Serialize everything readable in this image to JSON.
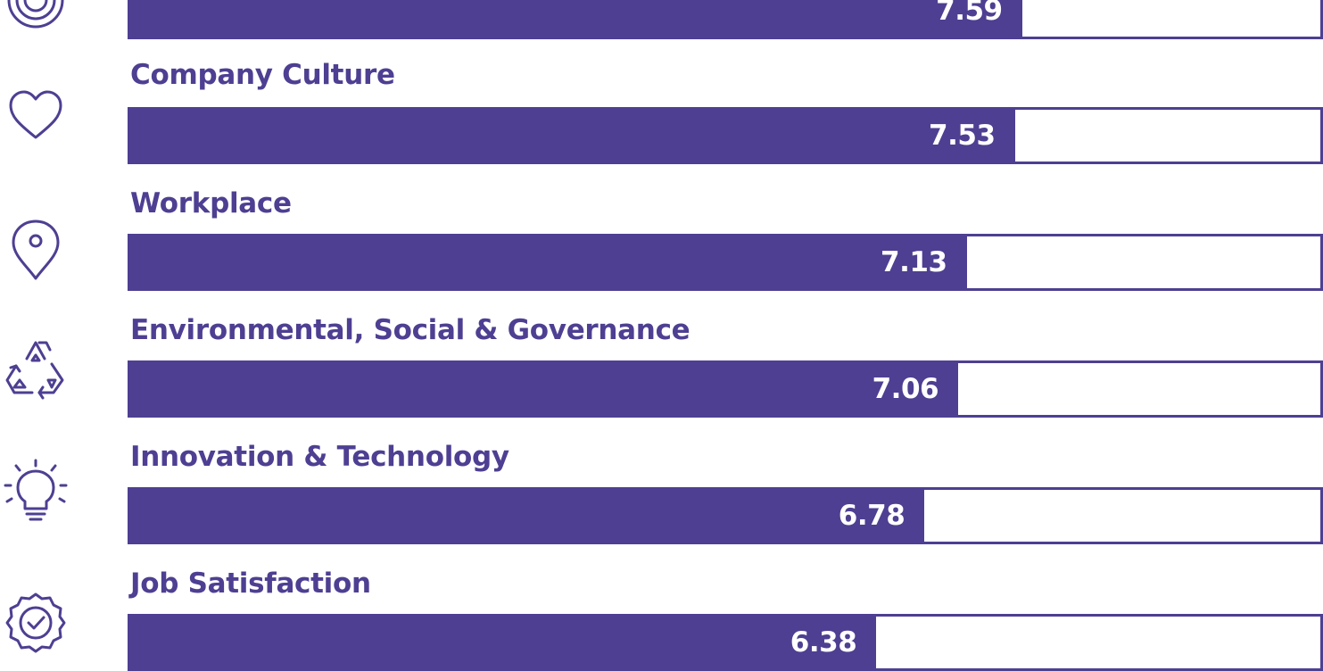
{
  "colors": {
    "bar": "#4e3f92",
    "text_on_bar": "#ffffff",
    "background": "#ffffff"
  },
  "chart_data": {
    "type": "bar",
    "orientation": "horizontal",
    "categories": [
      "",
      "Company Culture",
      "Workplace",
      "Environmental, Social & Governance",
      "Innovation & Technology",
      "Job Satisfaction"
    ],
    "values": [
      7.59,
      7.53,
      7.13,
      7.06,
      6.78,
      6.38
    ],
    "icons": [
      "target-icon",
      "heart-icon",
      "location-pin-icon",
      "recycle-icon",
      "lightbulb-icon",
      "badge-check-icon"
    ],
    "xlim": [
      0,
      10
    ]
  }
}
